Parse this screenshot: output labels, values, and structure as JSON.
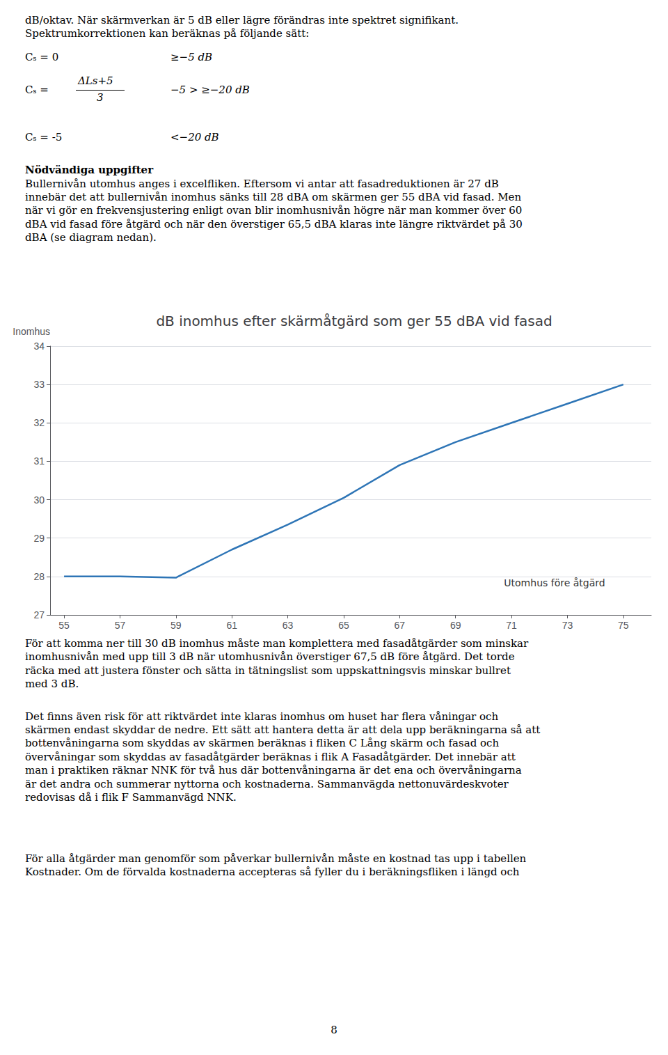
{
  "chart_data": {
    "type": "line",
    "title": "dB inomhus efter skärmåtgärd som ger 55 dBA vid fasad",
    "ylabel": "Inomhus",
    "annotation": "Utomhus före åtgärd",
    "x": [
      55,
      57,
      59,
      61,
      63,
      65,
      67,
      69,
      71,
      73,
      75
    ],
    "values": [
      28.0,
      28.0,
      27.97,
      28.7,
      29.35,
      30.05,
      30.9,
      31.5,
      32.0,
      32.5,
      33.0
    ],
    "color": "#2E75B6",
    "xlim": [
      54.5,
      76.0
    ],
    "xticks": [
      55,
      57,
      59,
      61,
      63,
      65,
      67,
      69,
      71,
      73,
      75
    ],
    "ylim": [
      27,
      34
    ],
    "yticks": [
      27,
      28,
      29,
      30,
      31,
      32,
      33,
      34
    ],
    "grid": true
  },
  "page_text": {
    "intro": [
      "dB/oktav. När skärmverkan är 5 dB eller lägre förändras inte spektret signifikant.",
      "Spektrumkorrektionen kan beräknas på följande sätt:"
    ],
    "formulas": [
      {
        "lhs": "Cₛ = 0",
        "condition": "≥−5 ​dB"
      },
      {
        "lhs": "Cₛ =",
        "numerator": "Δ​Ls+5",
        "denominator": "3",
        "condition": "−5 > ≥−20 ​dB"
      },
      {
        "lhs": "Cₛ = -5",
        "condition": "<−20 ​dB"
      }
    ],
    "heading": "Nödvändiga uppgifter",
    "paragraph_before_chart": [
      "Bullernivån utomhus anges i excelfliken. Eftersom vi antar att fasadreduktionen är 27 dB",
      "innebär det att bullernivån inomhus sänks till 28 dBA om skärmen ger 55 dBA vid fasad. Men",
      "när vi gör en frekvensjustering enligt ovan blir inomhusnivån högre när man kommer över 60",
      "dBA vid fasad före åtgärd och när den överstiger 65,5 dBA klaras inte längre riktvärdet på 30",
      "dBA (se diagram nedan)."
    ],
    "paragraphs_after_chart": [
      [
        "För att komma ner till 30 dB inomhus måste man komplettera med fasadåtgärder som minskar",
        "inomhusnivån med upp till 3 dB när utomhusnivån överstiger 67,5 dB före åtgärd. Det torde",
        "räcka med att justera fönster och sätta in tätningslist som uppskattningsvis minskar bullret",
        "med 3 dB."
      ],
      [
        "Det finns även risk för att riktvärdet inte klaras inomhus om huset har flera våningar och",
        "skärmen endast skyddar de nedre. Ett sätt att hantera detta är att dela upp beräkningarna så att",
        "bottenvåningarna som skyddas av skärmen beräknas i fliken C Lång skärm och fasad och",
        "övervåningar som skyddas av fasadåtgärder beräknas i flik A Fasadåtgärder. Det innebär att",
        "man i praktiken räknar NNK för två hus där bottenvåningarna är det ena och övervåningarna",
        "är det andra och summerar nyttorna och kostnaderna. Sammanvägda nettonuvärdeskvoter",
        "redovisas då i flik F Sammanvägd NNK."
      ],
      [
        "För alla åtgärder man genomför som påverkar bullernivån måste en kostnad tas upp i tabellen",
        "Kostnader. Om de förvalda kostnaderna accepteras så fyller du i beräkningsfliken i längd och"
      ]
    ],
    "page_number": 8
  }
}
